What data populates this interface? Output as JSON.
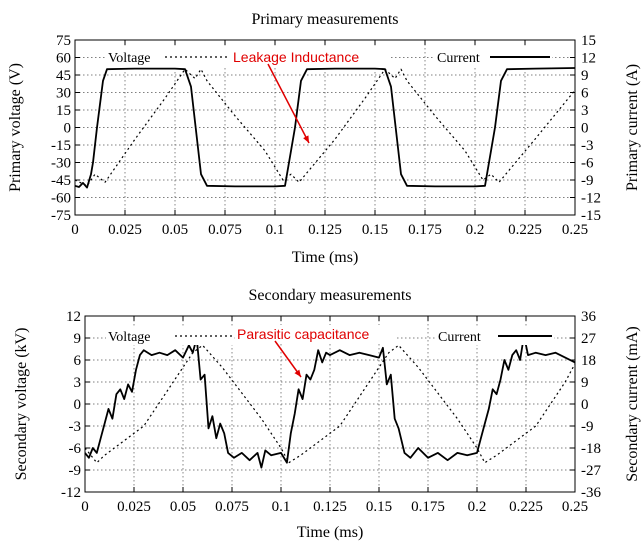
{
  "chart_data": [
    {
      "type": "line",
      "title": "Primary measurements",
      "xlabel": "Time (ms)",
      "ylabel": "Primary voltage (V)",
      "y2label": "Primary current (A)",
      "xlim": [
        0,
        0.25
      ],
      "ylim": [
        -75,
        75
      ],
      "y2lim": [
        -15,
        15
      ],
      "xticks": [
        "0",
        "0.025",
        "0.05",
        "0.075",
        "0.1",
        "0.125",
        "0.15",
        "0.175",
        "0.2",
        "0.225",
        "0.25"
      ],
      "yticks": [
        "-75",
        "-60",
        "-45",
        "-30",
        "-15",
        "0",
        "15",
        "30",
        "45",
        "60",
        "75"
      ],
      "y2ticks": [
        "-15",
        "-12",
        "-9",
        "-6",
        "-3",
        "0",
        "3",
        "6",
        "9",
        "12",
        "15"
      ],
      "grid": true,
      "legend_position": "top",
      "annotation": "Leakage Inductance",
      "annotation_color": "#e00000",
      "series": [
        {
          "name": "Voltage",
          "axis": "left",
          "style": "dotted",
          "x": [
            0,
            0.006,
            0.01,
            0.015,
            0.03,
            0.045,
            0.055,
            0.06,
            0.063,
            0.066,
            0.08,
            0.095,
            0.104,
            0.108,
            0.112,
            0.13,
            0.145,
            0.155,
            0.16,
            0.163,
            0.166,
            0.18,
            0.195,
            0.204,
            0.208,
            0.212,
            0.23,
            0.25
          ],
          "y": [
            -45,
            -50,
            -40,
            -47,
            -10,
            25,
            50,
            42,
            50,
            40,
            10,
            -20,
            -45,
            -40,
            -47,
            -10,
            25,
            50,
            42,
            50,
            40,
            10,
            -20,
            -45,
            -40,
            -47,
            -10,
            32
          ]
        },
        {
          "name": "Current",
          "axis": "right",
          "style": "solid",
          "x": [
            0,
            0.002,
            0.004,
            0.006,
            0.008,
            0.009,
            0.011,
            0.014,
            0.016,
            0.03,
            0.05,
            0.055,
            0.058,
            0.063,
            0.066,
            0.08,
            0.1,
            0.105,
            0.107,
            0.11,
            0.113,
            0.116,
            0.13,
            0.15,
            0.155,
            0.158,
            0.163,
            0.166,
            0.18,
            0.2,
            0.205,
            0.207,
            0.21,
            0.213,
            0.216,
            0.23,
            0.25
          ],
          "y": [
            -10,
            -10.2,
            -9.5,
            -10.3,
            -8,
            -6,
            0,
            8,
            10,
            10.1,
            10.1,
            10,
            7,
            -8,
            -10,
            -10.1,
            -10.1,
            -10,
            -6,
            0,
            8,
            10,
            10.1,
            10.1,
            10,
            7,
            -8,
            -10,
            -10.1,
            -10.1,
            -10,
            -6,
            0,
            8,
            10,
            10.1,
            10.2
          ]
        }
      ]
    },
    {
      "type": "line",
      "title": "Secondary measurements",
      "xlabel": "Time (ms)",
      "ylabel": "Secondary voltage (kV)",
      "y2label": "Secondary current (mA)",
      "xlim": [
        0,
        0.25
      ],
      "ylim": [
        -12,
        12
      ],
      "y2lim": [
        -36,
        36
      ],
      "xticks": [
        "0",
        "0.025",
        "0.05",
        "0.075",
        "0.1",
        "0.125",
        "0.15",
        "0.175",
        "0.2",
        "0.225",
        "0.25"
      ],
      "yticks": [
        "-12",
        "-9",
        "-6",
        "-3",
        "0",
        "3",
        "6",
        "9",
        "12"
      ],
      "y2ticks": [
        "-36",
        "-27",
        "-18",
        "-9",
        "0",
        "9",
        "18",
        "27",
        "36"
      ],
      "grid": true,
      "legend_position": "top",
      "annotation": "Parasitic capacitance",
      "annotation_color": "#e00000",
      "series": [
        {
          "name": "Voltage",
          "axis": "left",
          "style": "dotted",
          "x": [
            0,
            0.006,
            0.01,
            0.03,
            0.045,
            0.055,
            0.06,
            0.07,
            0.09,
            0.1,
            0.104,
            0.11,
            0.13,
            0.145,
            0.155,
            0.16,
            0.17,
            0.19,
            0.2,
            0.204,
            0.21,
            0.23,
            0.245,
            0.25
          ],
          "y": [
            -6,
            -8,
            -7,
            -3,
            3,
            7,
            8,
            5,
            -2,
            -6,
            -8,
            -7,
            -3,
            3,
            7,
            8,
            5,
            -2,
            -6,
            -8,
            -7,
            -3,
            3,
            5.5
          ]
        },
        {
          "name": "Current",
          "axis": "right",
          "style": "solid",
          "x": [
            0,
            0.002,
            0.004,
            0.006,
            0.008,
            0.01,
            0.012,
            0.014,
            0.016,
            0.018,
            0.02,
            0.022,
            0.024,
            0.026,
            0.028,
            0.03,
            0.034,
            0.038,
            0.042,
            0.046,
            0.05,
            0.053,
            0.055,
            0.057,
            0.059,
            0.061,
            0.063,
            0.065,
            0.067,
            0.069,
            0.071,
            0.073,
            0.076,
            0.08,
            0.084,
            0.088,
            0.09,
            0.092,
            0.095,
            0.1,
            0.103,
            0.105,
            0.107,
            0.109,
            0.111,
            0.113,
            0.115,
            0.117,
            0.119,
            0.121,
            0.123,
            0.125,
            0.13,
            0.135,
            0.14,
            0.145,
            0.15,
            0.152,
            0.154,
            0.156,
            0.158,
            0.16,
            0.163,
            0.166,
            0.17,
            0.175,
            0.18,
            0.185,
            0.19,
            0.195,
            0.2,
            0.202,
            0.204,
            0.206,
            0.208,
            0.21,
            0.212,
            0.214,
            0.216,
            0.218,
            0.22,
            0.222,
            0.224,
            0.226,
            0.23,
            0.235,
            0.24,
            0.245,
            0.25
          ],
          "y": [
            -20,
            -22,
            -18,
            -20,
            -14,
            -8,
            -2,
            -6,
            4,
            6,
            2,
            8,
            5,
            14,
            20,
            22,
            20,
            21,
            20,
            22,
            19,
            24,
            21,
            27,
            10,
            12,
            -10,
            -5,
            -14,
            -8,
            -12,
            -20,
            -22,
            -20,
            -23,
            -20,
            -26,
            -19,
            -21,
            -20,
            -24,
            -12,
            -4,
            6,
            2,
            12,
            10,
            14,
            22,
            17,
            21,
            20,
            22,
            20,
            21,
            20,
            19,
            23,
            8,
            12,
            -6,
            -10,
            -20,
            -22,
            -18,
            -22,
            -20,
            -23,
            -20,
            -21,
            -20,
            -14,
            -8,
            -2,
            6,
            4,
            10,
            18,
            14,
            20,
            22,
            18,
            28,
            20,
            21,
            20,
            21,
            19,
            17
          ]
        }
      ]
    }
  ]
}
